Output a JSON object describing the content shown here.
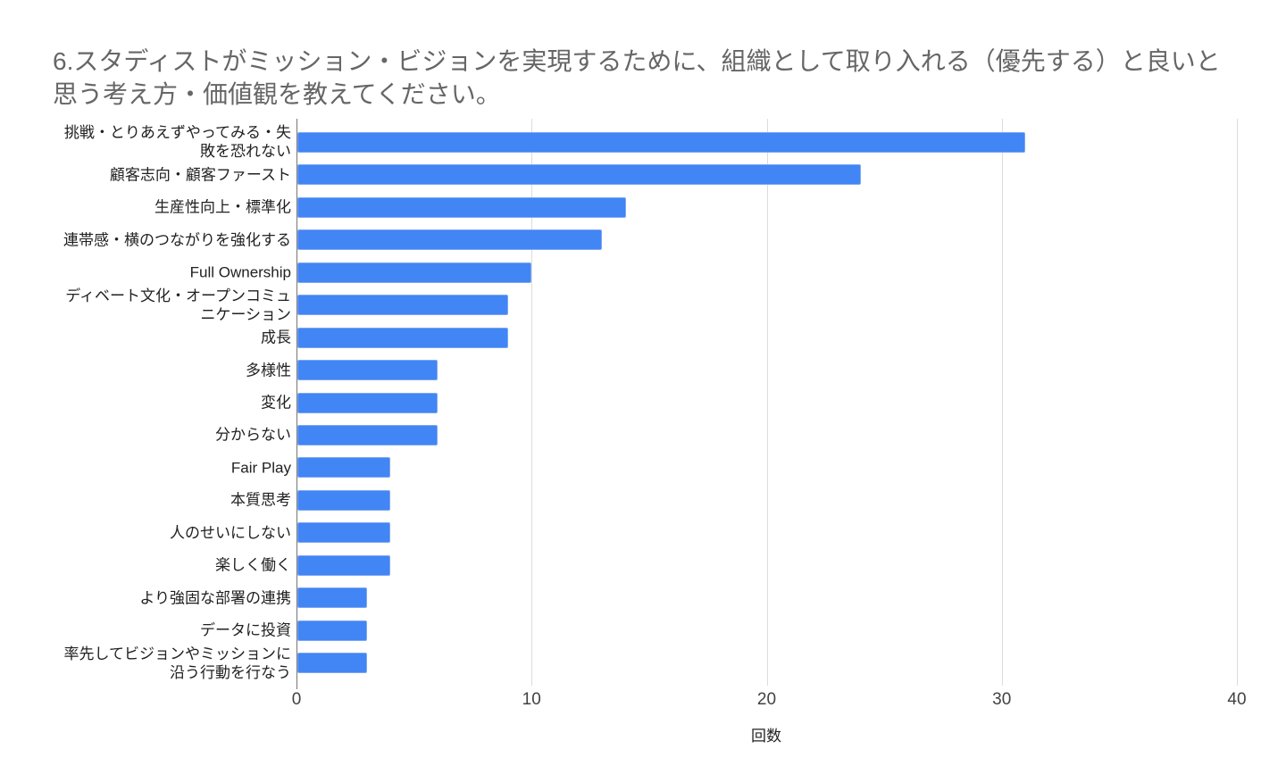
{
  "title": "6.スタディストがミッション・ビジョンを実現するために、組織として取り入れる（優先する）と良いと思う考え方・価値観を教えてください。",
  "chart_data": {
    "type": "bar",
    "orientation": "horizontal",
    "title": "6.スタディストがミッション・ビジョンを実現するために、組織として取り入れる（優先する）と良いと思う考え方・価値観を教えてください。",
    "categories": [
      "挑戦・とりあえずやってみる・失敗を恐れない",
      "顧客志向・顧客ファースト",
      "生産性向上・標準化",
      "連帯感・横のつながりを強化する",
      "Full Ownership",
      "ディベート文化・オープンコミュニケーション",
      "成長",
      "多様性",
      "変化",
      "分からない",
      "Fair Play",
      "本質思考",
      "人のせいにしない",
      "楽しく働く",
      "より強固な部署の連携",
      "データに投資",
      "率先してビジョンやミッションに沿う行動を行なう"
    ],
    "values": [
      31,
      24,
      14,
      13,
      10,
      9,
      9,
      6,
      6,
      6,
      4,
      4,
      4,
      4,
      3,
      3,
      3
    ],
    "xlabel": "回数",
    "xlim": [
      0,
      40
    ],
    "xticks": [
      0,
      10,
      20,
      30,
      40
    ],
    "grid": true,
    "legend": "none",
    "colors": {
      "bar": "#4285f4",
      "bar_edge": "#7da7f4",
      "gridline": "#dcdcdc",
      "baseline": "#757575",
      "title_text": "#666666",
      "category_text": "#212121",
      "tick_text": "#424242",
      "axis_title_text": "#202124",
      "background": "#ffffff"
    }
  }
}
